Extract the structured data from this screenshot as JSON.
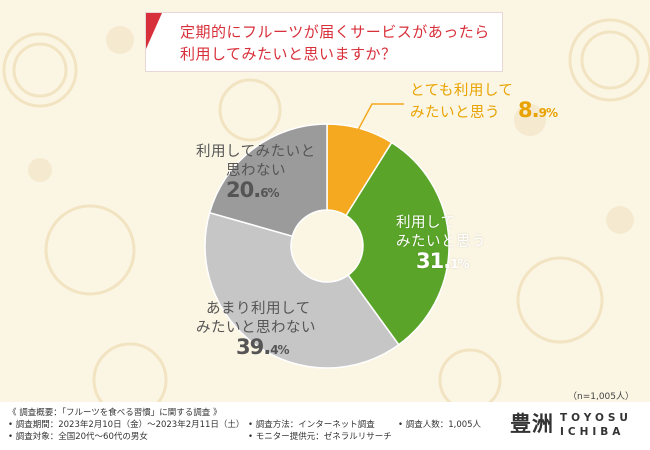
{
  "title": {
    "line1": "定期的にフルーツが届くサービスがあったら",
    "line2": "利用してみたいと思いますか？"
  },
  "colors": {
    "accent_red": "#d8303a",
    "orange": "#f5a920",
    "green": "#5aa529",
    "dark_gray": "#9b9b9b",
    "light_gray": "#c6c6c6",
    "background": "#fbf5e3"
  },
  "chart_data": {
    "type": "pie",
    "subtype": "donut",
    "categories": [
      "とても利用してみたいと思う",
      "利用してみたいと思う",
      "あまり利用してみたいと思わない",
      "利用してみたいと思わない"
    ],
    "values": [
      8.9,
      31.1,
      39.4,
      20.6
    ],
    "labels": [
      {
        "line1": "とても利用して",
        "line2": "みたいと思う",
        "int": "8.",
        "dec": "9%"
      },
      {
        "line1": "利用して",
        "line2": "みたいと思う",
        "int": "31.",
        "dec": "1%"
      },
      {
        "line1": "あまり利用して",
        "line2": "みたいと思わない",
        "int": "39.",
        "dec": "4%"
      },
      {
        "line1": "利用してみたいと",
        "line2": "思わない",
        "int": "20.",
        "dec": "6%"
      }
    ],
    "sample_note": "（n=1,005人）"
  },
  "footer": {
    "l1": "《 調査概要：「フルーツを食べる習慣」に関する調査 》",
    "l2": "• 調査期間：2023年2月10日（金）〜2023年2月11日（土）",
    "l3": "• 調査対象：全国20代〜60代の男女",
    "m1": "• 調査方法：インターネット調査",
    "m2": "• モニター提供元：ゼネラルリサーチ",
    "r1": "• 調査人数：1,005人"
  },
  "logo": {
    "kanji": "豊洲",
    "en1": "TOYOSU",
    "en2": "ICHIBA"
  }
}
